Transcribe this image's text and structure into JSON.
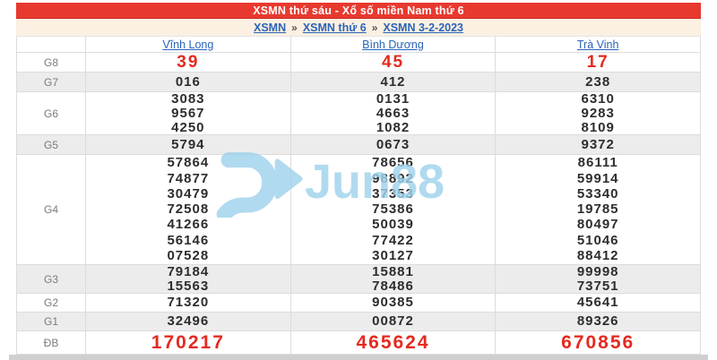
{
  "title": "XSMN thứ sáu - Xổ số miền Nam thứ 6",
  "breadcrumb": {
    "separator": "»",
    "items": [
      "XSMN",
      "XSMN thứ 6",
      "XSMN 3-2-2023"
    ]
  },
  "columns": [
    "Vĩnh Long",
    "Bình Dương",
    "Trà Vinh"
  ],
  "rows": [
    {
      "label": "G8",
      "highlight": true,
      "values": [
        [
          "39"
        ],
        [
          "45"
        ],
        [
          "17"
        ]
      ]
    },
    {
      "label": "G7",
      "highlight": false,
      "values": [
        [
          "016"
        ],
        [
          "412"
        ],
        [
          "238"
        ]
      ]
    },
    {
      "label": "G6",
      "highlight": false,
      "values": [
        [
          "3083",
          "9567",
          "4250"
        ],
        [
          "0131",
          "4663",
          "1082"
        ],
        [
          "6310",
          "9283",
          "8109"
        ]
      ]
    },
    {
      "label": "G5",
      "highlight": false,
      "values": [
        [
          "5794"
        ],
        [
          "0673"
        ],
        [
          "9372"
        ]
      ]
    },
    {
      "label": "G4",
      "highlight": false,
      "values": [
        [
          "57864",
          "74877",
          "30479",
          "72508",
          "41266",
          "56146",
          "07528"
        ],
        [
          "78656",
          "98892",
          "37353",
          "75386",
          "50039",
          "77422",
          "30127"
        ],
        [
          "86111",
          "59914",
          "53340",
          "19785",
          "80497",
          "51046",
          "88412"
        ]
      ]
    },
    {
      "label": "G3",
      "highlight": false,
      "values": [
        [
          "79184",
          "15563"
        ],
        [
          "15881",
          "78486"
        ],
        [
          "99998",
          "73751"
        ]
      ]
    },
    {
      "label": "G2",
      "highlight": false,
      "values": [
        [
          "71320"
        ],
        [
          "90385"
        ],
        [
          "45641"
        ]
      ]
    },
    {
      "label": "G1",
      "highlight": false,
      "values": [
        [
          "32496"
        ],
        [
          "00872"
        ],
        [
          "89326"
        ]
      ]
    },
    {
      "label": "ĐB",
      "highlight": true,
      "values": [
        [
          "170217"
        ],
        [
          "465624"
        ],
        [
          "670856"
        ]
      ]
    }
  ],
  "watermark": {
    "text": "Jun88",
    "color": "#9fd2ec"
  },
  "colors": {
    "title_bar": "#e8392f",
    "highlight_number": "#e42a20",
    "link": "#2a64b8",
    "breadcrumb_bg": "#fbf0e2",
    "alt_row_bg": "#ececec",
    "watermark": "#9fd2ec"
  }
}
